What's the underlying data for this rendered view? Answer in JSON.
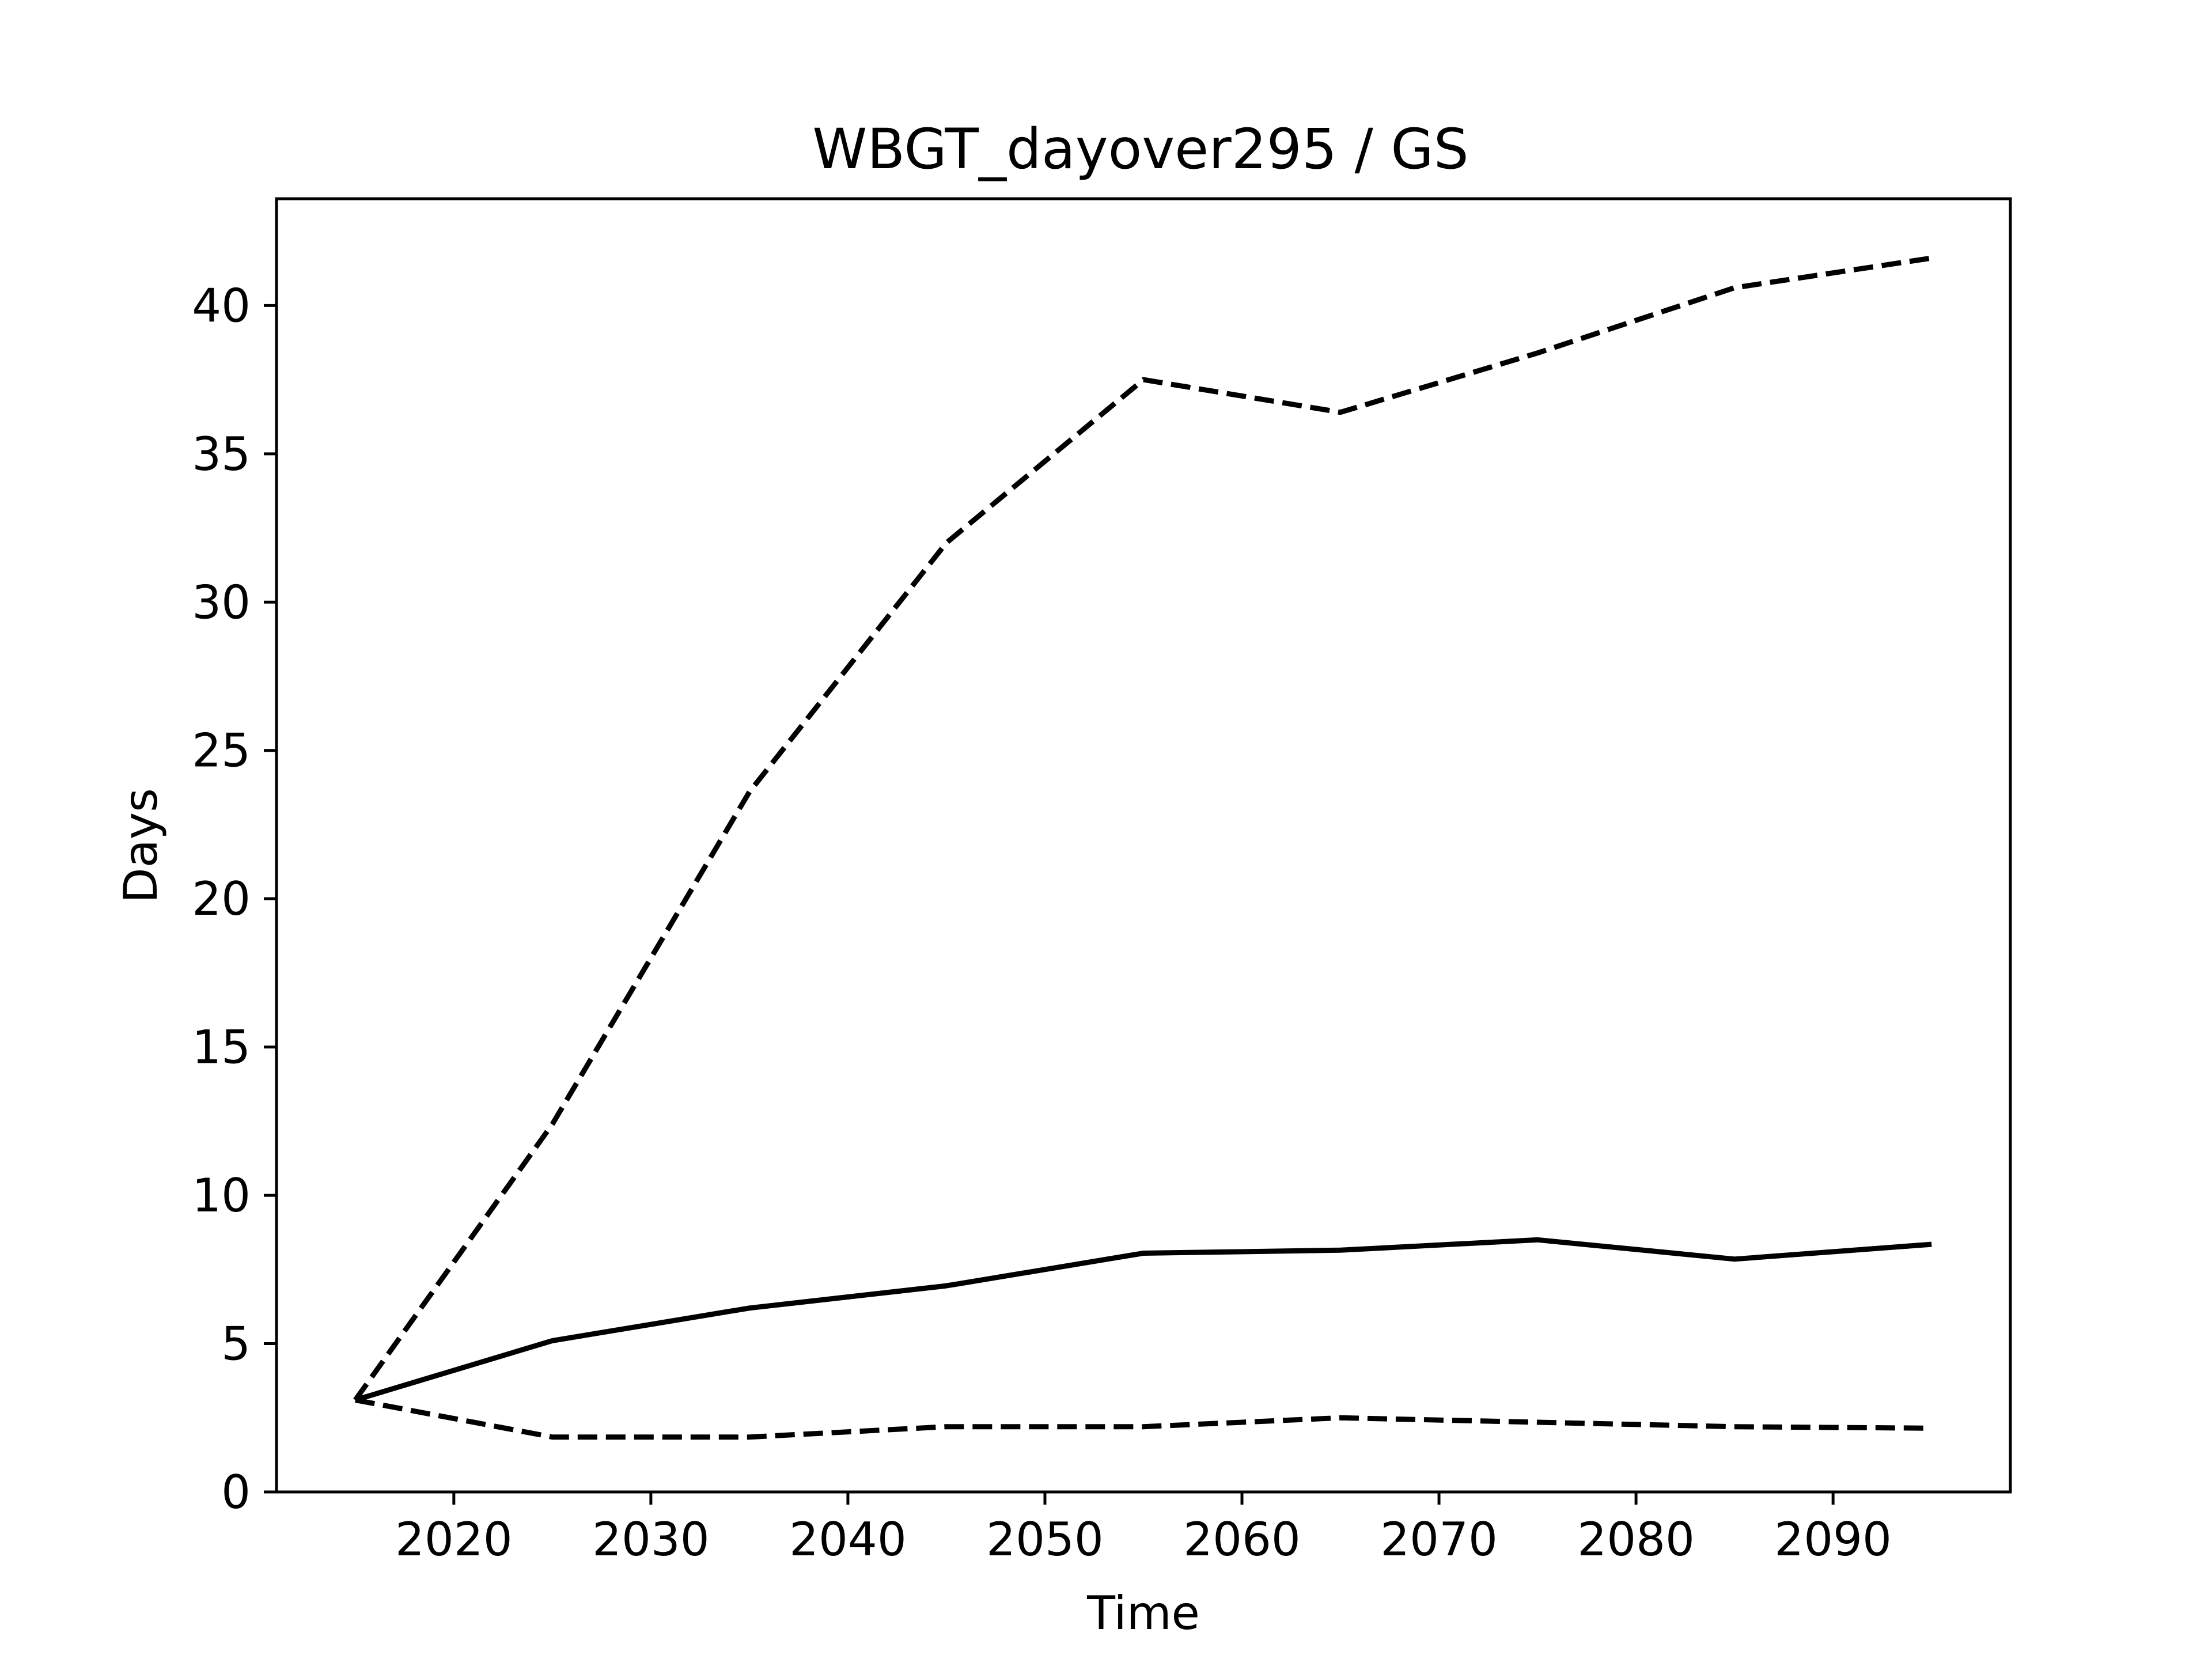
{
  "chart_data": {
    "type": "line",
    "title": "WBGT_dayover295 / GS",
    "xlabel": "Time",
    "ylabel": "Days",
    "xlim": [
      2011,
      2099
    ],
    "ylim": [
      0,
      43.6
    ],
    "xticks": [
      2020,
      2030,
      2040,
      2050,
      2060,
      2070,
      2080,
      2090
    ],
    "yticks": [
      0,
      5,
      10,
      15,
      20,
      25,
      30,
      35,
      40
    ],
    "grid": false,
    "legend": "none",
    "x": [
      2015,
      2025,
      2035,
      2045,
      2055,
      2065,
      2075,
      2085,
      2095
    ],
    "series": [
      {
        "style": "solid",
        "color": "#000000",
        "values": [
          3.1,
          5.1,
          6.2,
          6.95,
          8.05,
          8.15,
          8.5,
          7.85,
          8.35
        ]
      },
      {
        "style": "dashed",
        "color": "#000000",
        "values": [
          3.1,
          12.4,
          23.6,
          32.0,
          37.5,
          36.4,
          38.4,
          40.6,
          41.6
        ]
      },
      {
        "style": "dashed",
        "color": "#000000",
        "values": [
          3.1,
          1.85,
          1.85,
          2.2,
          2.2,
          2.5,
          2.35,
          2.2,
          2.15
        ]
      }
    ]
  }
}
